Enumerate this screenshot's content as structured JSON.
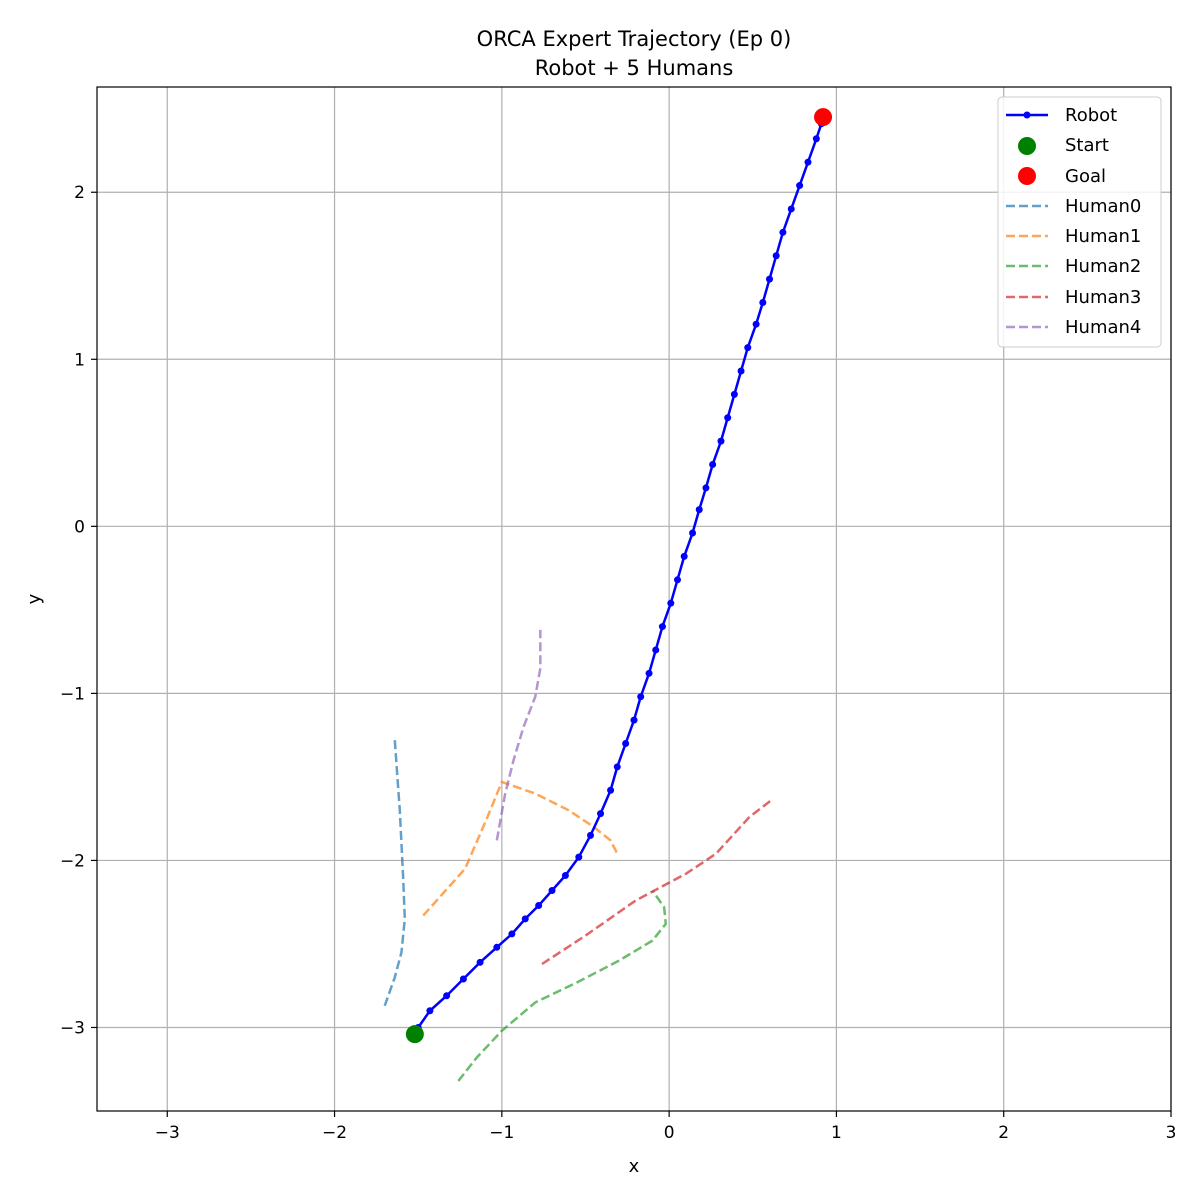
{
  "chart_data": {
    "type": "line",
    "title": "ORCA Expert Trajectory (Ep 0)",
    "subtitle": "Robot + 5 Humans",
    "xlabel": "x",
    "ylabel": "y",
    "xlim": [
      -3.42,
      3.0
    ],
    "ylim": [
      -3.5,
      2.63
    ],
    "xticks": [
      -3,
      -2,
      -1,
      0,
      1,
      2,
      3
    ],
    "yticks": [
      -3,
      -2,
      -1,
      0,
      1,
      2
    ],
    "xtick_labels": [
      "−3",
      "−2",
      "−1",
      "0",
      "1",
      "2",
      "3"
    ],
    "ytick_labels": [
      "−3",
      "−2",
      "−1",
      "0",
      "1",
      "2"
    ],
    "grid": true,
    "legend_position": "top-right",
    "robot": {
      "name": "Robot",
      "color": "#0000ff",
      "points": [
        [
          -1.5,
          -3.0
        ],
        [
          -1.43,
          -2.9
        ],
        [
          -1.33,
          -2.81
        ],
        [
          -1.23,
          -2.71
        ],
        [
          -1.13,
          -2.61
        ],
        [
          -1.03,
          -2.52
        ],
        [
          -0.94,
          -2.44
        ],
        [
          -0.86,
          -2.35
        ],
        [
          -0.78,
          -2.27
        ],
        [
          -0.7,
          -2.18
        ],
        [
          -0.62,
          -2.09
        ],
        [
          -0.54,
          -1.98
        ],
        [
          -0.47,
          -1.85
        ],
        [
          -0.41,
          -1.72
        ],
        [
          -0.35,
          -1.58
        ],
        [
          -0.31,
          -1.44
        ],
        [
          -0.26,
          -1.3
        ],
        [
          -0.21,
          -1.16
        ],
        [
          -0.17,
          -1.02
        ],
        [
          -0.12,
          -0.88
        ],
        [
          -0.08,
          -0.74
        ],
        [
          -0.04,
          -0.6
        ],
        [
          0.01,
          -0.46
        ],
        [
          0.05,
          -0.32
        ],
        [
          0.09,
          -0.18
        ],
        [
          0.14,
          -0.04
        ],
        [
          0.18,
          0.1
        ],
        [
          0.22,
          0.23
        ],
        [
          0.26,
          0.37
        ],
        [
          0.31,
          0.51
        ],
        [
          0.35,
          0.65
        ],
        [
          0.39,
          0.79
        ],
        [
          0.43,
          0.93
        ],
        [
          0.47,
          1.07
        ],
        [
          0.52,
          1.21
        ],
        [
          0.56,
          1.34
        ],
        [
          0.6,
          1.48
        ],
        [
          0.64,
          1.62
        ],
        [
          0.68,
          1.76
        ],
        [
          0.73,
          1.9
        ],
        [
          0.78,
          2.04
        ],
        [
          0.83,
          2.18
        ],
        [
          0.88,
          2.32
        ],
        [
          0.91,
          2.41
        ]
      ]
    },
    "start": {
      "name": "Start",
      "x": -1.52,
      "y": -3.04,
      "color": "#008000"
    },
    "goal": {
      "name": "Goal",
      "x": 0.92,
      "y": 2.45,
      "color": "#ff0000"
    },
    "humans": [
      {
        "name": "Human0",
        "color": "#1f77b4",
        "points": [
          [
            -1.64,
            -1.28
          ],
          [
            -1.61,
            -1.7
          ],
          [
            -1.59,
            -2.1
          ],
          [
            -1.58,
            -2.35
          ],
          [
            -1.6,
            -2.55
          ],
          [
            -1.64,
            -2.7
          ],
          [
            -1.7,
            -2.87
          ]
        ]
      },
      {
        "name": "Human1",
        "color": "#ff7f0e",
        "points": [
          [
            -1.47,
            -2.33
          ],
          [
            -1.22,
            -2.05
          ],
          [
            -1.09,
            -1.75
          ],
          [
            -1.0,
            -1.53
          ],
          [
            -0.8,
            -1.6
          ],
          [
            -0.6,
            -1.7
          ],
          [
            -0.45,
            -1.8
          ],
          [
            -0.35,
            -1.88
          ],
          [
            -0.31,
            -1.96
          ]
        ]
      },
      {
        "name": "Human2",
        "color": "#2ca02c",
        "points": [
          [
            -1.26,
            -3.32
          ],
          [
            -1.15,
            -3.18
          ],
          [
            -1.0,
            -3.02
          ],
          [
            -0.8,
            -2.85
          ],
          [
            -0.55,
            -2.73
          ],
          [
            -0.3,
            -2.6
          ],
          [
            -0.1,
            -2.48
          ],
          [
            -0.02,
            -2.38
          ],
          [
            -0.03,
            -2.28
          ],
          [
            -0.1,
            -2.18
          ]
        ]
      },
      {
        "name": "Human3",
        "color": "#d62728",
        "points": [
          [
            -0.76,
            -2.62
          ],
          [
            -0.5,
            -2.45
          ],
          [
            -0.2,
            -2.24
          ],
          [
            0.1,
            -2.08
          ],
          [
            0.28,
            -1.96
          ],
          [
            0.38,
            -1.85
          ],
          [
            0.48,
            -1.74
          ],
          [
            0.61,
            -1.64
          ]
        ]
      },
      {
        "name": "Human4",
        "color": "#9467bd",
        "points": [
          [
            -1.03,
            -1.88
          ],
          [
            -0.98,
            -1.6
          ],
          [
            -0.93,
            -1.4
          ],
          [
            -0.87,
            -1.2
          ],
          [
            -0.8,
            -1.02
          ],
          [
            -0.77,
            -0.85
          ],
          [
            -0.77,
            -0.62
          ]
        ]
      }
    ]
  }
}
